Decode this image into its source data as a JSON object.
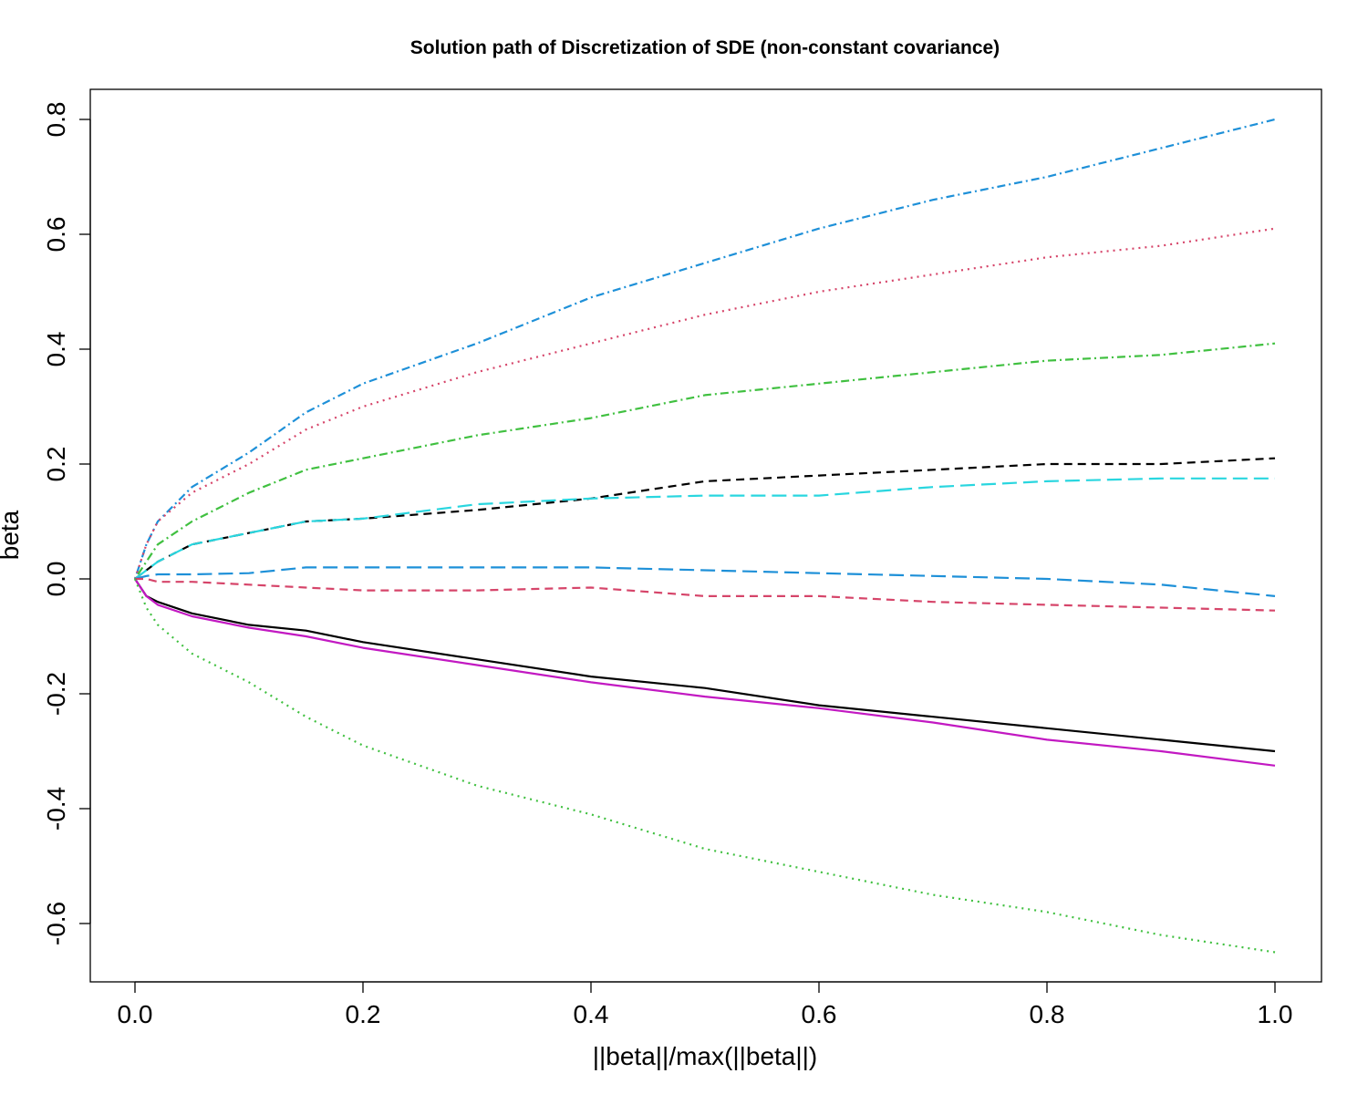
{
  "chart_data": {
    "type": "line",
    "title": "Solution path of Discretization of SDE (non-constant covariance)",
    "xlabel": "||beta||/max(||beta||)",
    "ylabel": "beta",
    "xlim": [
      0.0,
      1.0
    ],
    "ylim": [
      -0.6,
      0.8
    ],
    "xticks": [
      "0.0",
      "0.2",
      "0.4",
      "0.6",
      "0.8",
      "1.0"
    ],
    "yticks": [
      "-0.6",
      "-0.4",
      "-0.2",
      "0.0",
      "0.2",
      "0.4",
      "0.6",
      "0.8"
    ],
    "grid": false,
    "legend": "none",
    "x": [
      0.0,
      0.01,
      0.02,
      0.05,
      0.1,
      0.15,
      0.2,
      0.3,
      0.4,
      0.5,
      0.6,
      0.7,
      0.8,
      0.9,
      1.0
    ],
    "series": [
      {
        "color": "#1E90D8",
        "style": "dotdash",
        "values": [
          0.0,
          0.06,
          0.1,
          0.16,
          0.22,
          0.29,
          0.34,
          0.41,
          0.49,
          0.55,
          0.61,
          0.66,
          0.7,
          0.75,
          0.8
        ]
      },
      {
        "color": "#D6456A",
        "style": "dotted",
        "values": [
          0.0,
          0.06,
          0.1,
          0.15,
          0.2,
          0.26,
          0.3,
          0.36,
          0.41,
          0.46,
          0.5,
          0.53,
          0.56,
          0.58,
          0.61
        ]
      },
      {
        "color": "#40C040",
        "style": "dotdash",
        "values": [
          0.0,
          0.03,
          0.06,
          0.1,
          0.15,
          0.19,
          0.21,
          0.25,
          0.28,
          0.32,
          0.34,
          0.36,
          0.38,
          0.39,
          0.41
        ]
      },
      {
        "color": "#000000",
        "style": "dashed",
        "values": [
          0.0,
          0.015,
          0.03,
          0.06,
          0.08,
          0.1,
          0.105,
          0.12,
          0.14,
          0.17,
          0.18,
          0.19,
          0.2,
          0.2,
          0.21
        ]
      },
      {
        "color": "#29D6DF",
        "style": "longdash",
        "values": [
          0.0,
          0.015,
          0.03,
          0.06,
          0.08,
          0.1,
          0.105,
          0.13,
          0.14,
          0.145,
          0.145,
          0.16,
          0.17,
          0.175,
          0.175
        ]
      },
      {
        "color": "#1E90D8",
        "style": "longdash",
        "values": [
          0.0,
          0.005,
          0.008,
          0.008,
          0.01,
          0.02,
          0.02,
          0.02,
          0.02,
          0.015,
          0.01,
          0.005,
          0.0,
          -0.01,
          -0.03
        ]
      },
      {
        "color": "#D6456A",
        "style": "dashed",
        "values": [
          0.0,
          0.0,
          -0.005,
          -0.005,
          -0.01,
          -0.015,
          -0.02,
          -0.02,
          -0.015,
          -0.03,
          -0.03,
          -0.04,
          -0.045,
          -0.05,
          -0.055
        ]
      },
      {
        "color": "#000000",
        "style": "solid",
        "values": [
          0.0,
          -0.03,
          -0.04,
          -0.06,
          -0.08,
          -0.09,
          -0.11,
          -0.14,
          -0.17,
          -0.19,
          -0.22,
          -0.24,
          -0.26,
          -0.28,
          -0.3
        ]
      },
      {
        "color": "#C219C2",
        "style": "solid",
        "values": [
          0.0,
          -0.03,
          -0.045,
          -0.065,
          -0.085,
          -0.1,
          -0.12,
          -0.15,
          -0.18,
          -0.205,
          -0.225,
          -0.25,
          -0.28,
          -0.3,
          -0.325
        ]
      },
      {
        "color": "#40C040",
        "style": "dotted",
        "values": [
          0.0,
          -0.05,
          -0.08,
          -0.13,
          -0.18,
          -0.24,
          -0.29,
          -0.36,
          -0.41,
          -0.47,
          -0.51,
          -0.55,
          -0.58,
          -0.62,
          -0.65
        ]
      }
    ]
  }
}
